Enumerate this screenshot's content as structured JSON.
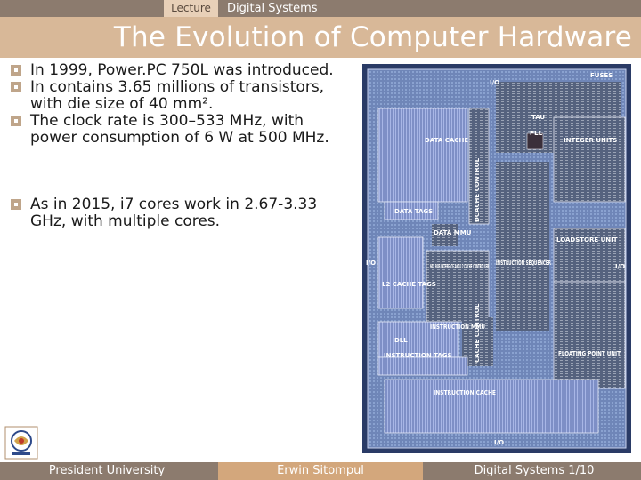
{
  "header": {
    "lecture_label": "Lecture",
    "course_label": "Digital Systems"
  },
  "title": "The Evolution of Computer Hardware",
  "bullets": [
    "In 1999, Power.PC 750L was introduced.",
    "In contains 3.65 millions of transistors, with die size of 40 mm².",
    "The clock rate is 300–533 MHz, with power consumption of 6 W at 500 MHz.",
    "As in 2015, i7 cores work in 2.67-3.33 GHz, with multiple cores."
  ],
  "die_labels": {
    "io_top": "I/O",
    "fuses": "FUSES",
    "tau": "TAU",
    "data_cache": "DATA CACHE",
    "pll": "PLL",
    "integer_units": "INTEGER UNITS",
    "dcache_control": "DCACHE CONTROL",
    "data_tags": "DATA TAGS",
    "data_mmu": "DATA MMU",
    "loadstore_unit": "LOADSTORE UNIT",
    "io_left": "I/O",
    "io_right": "I/O",
    "l2_cache_tags": "L2 CACHE TAGS",
    "bus_interface": "60X BUS INTERFACE AND L2 CACHE CONTROLLER",
    "instruction_sequencer": "INSTRUCTION SEQUENCER",
    "instruction_mmu": "INSTRUCTION MMU",
    "cache_control": "CACHE CONTROL",
    "dll": "DLL",
    "instruction_tags": "INSTRUCTION TAGS",
    "floating_point_unit": "FLOATING POINT UNIT",
    "instruction_cache": "INSTRUCTION CACHE",
    "io_bottom": "I/O"
  },
  "footer": {
    "institution": "President University",
    "author": "Erwin Sitompul",
    "page": "Digital Systems 1/10"
  },
  "colors": {
    "top_strip": "#8c7b6e",
    "title_band": "#d8b898",
    "footer_accent": "#d3a77c",
    "bullet_mark": "#bfa58a"
  }
}
